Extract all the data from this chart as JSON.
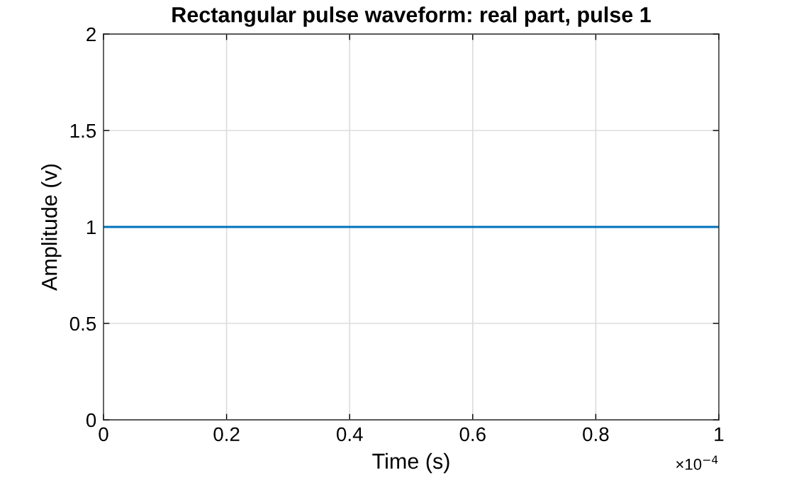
{
  "chart_data": {
    "type": "line",
    "title": "Rectangular pulse waveform: real part, pulse 1",
    "xlabel": "Time (s)",
    "ylabel": "Amplitude (v)",
    "x": [
      0,
      1
    ],
    "series": [
      {
        "color": "#0072bd",
        "values": [
          1,
          1
        ]
      }
    ],
    "xlim": [
      0,
      1
    ],
    "xticks": [
      0,
      0.2,
      0.4,
      0.6,
      0.8,
      1
    ],
    "ylim": [
      0,
      2
    ],
    "yticks": [
      0,
      0.5,
      1,
      1.5,
      2
    ],
    "grid": true,
    "annotations": [
      "×10$^{−4}$"
    ]
  }
}
